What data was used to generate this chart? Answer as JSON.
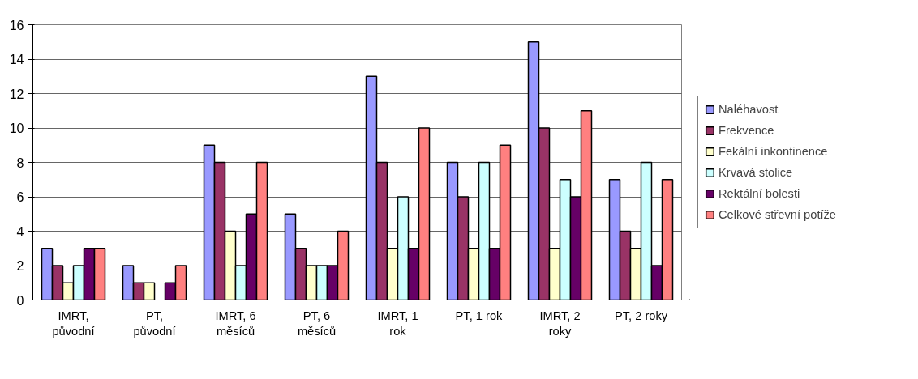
{
  "chart_data": {
    "type": "bar",
    "categories": [
      "IMRT, původní",
      "PT, původní",
      "IMRT, 6 měsíců",
      "PT, 6 měsíců",
      "IMRT, 1 rok",
      "PT, 1 rok",
      "IMRT, 2 roky",
      "PT, 2 roky"
    ],
    "series": [
      {
        "name": "Naléhavost",
        "color": "#9999ff",
        "values": [
          3,
          2,
          9,
          5,
          13,
          8,
          15,
          7
        ]
      },
      {
        "name": "Frekvence",
        "color": "#993366",
        "values": [
          2,
          1,
          8,
          3,
          8,
          6,
          10,
          4
        ]
      },
      {
        "name": "Fekální inkontinence",
        "color": "#ffffcc",
        "values": [
          1,
          1,
          4,
          2,
          3,
          3,
          3,
          3
        ]
      },
      {
        "name": "Krvavá stolice",
        "color": "#ccffff",
        "values": [
          2,
          null,
          2,
          2,
          6,
          8,
          7,
          8
        ]
      },
      {
        "name": "Rektální bolesti",
        "color": "#660066",
        "values": [
          3,
          1,
          5,
          2,
          3,
          3,
          6,
          2
        ]
      },
      {
        "name": "Celkové střevní potíže",
        "color": "#ff8080",
        "values": [
          3,
          2,
          8,
          4,
          10,
          9,
          11,
          7
        ]
      }
    ],
    "ylim": [
      0,
      16
    ],
    "yticks": [
      0,
      2,
      4,
      6,
      8,
      10,
      12,
      14,
      16
    ],
    "grid": "y",
    "legend": "right"
  }
}
